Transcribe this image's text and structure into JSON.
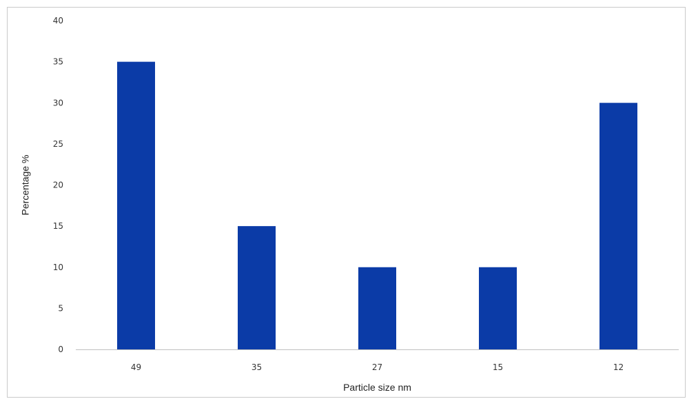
{
  "chart_data": {
    "type": "bar",
    "title": "",
    "xlabel": "Particle size nm",
    "ylabel": "Percentage %",
    "categories": [
      "49",
      "35",
      "27",
      "15",
      "12"
    ],
    "values": [
      35,
      15,
      10,
      10,
      30
    ],
    "ylim": [
      0,
      40
    ],
    "yticks": [
      0,
      5,
      10,
      15,
      20,
      25,
      30,
      35,
      40
    ],
    "grid": false,
    "legend": "none",
    "bar_color": "#0b3ba7",
    "axis_color": "#bfbfbf"
  }
}
